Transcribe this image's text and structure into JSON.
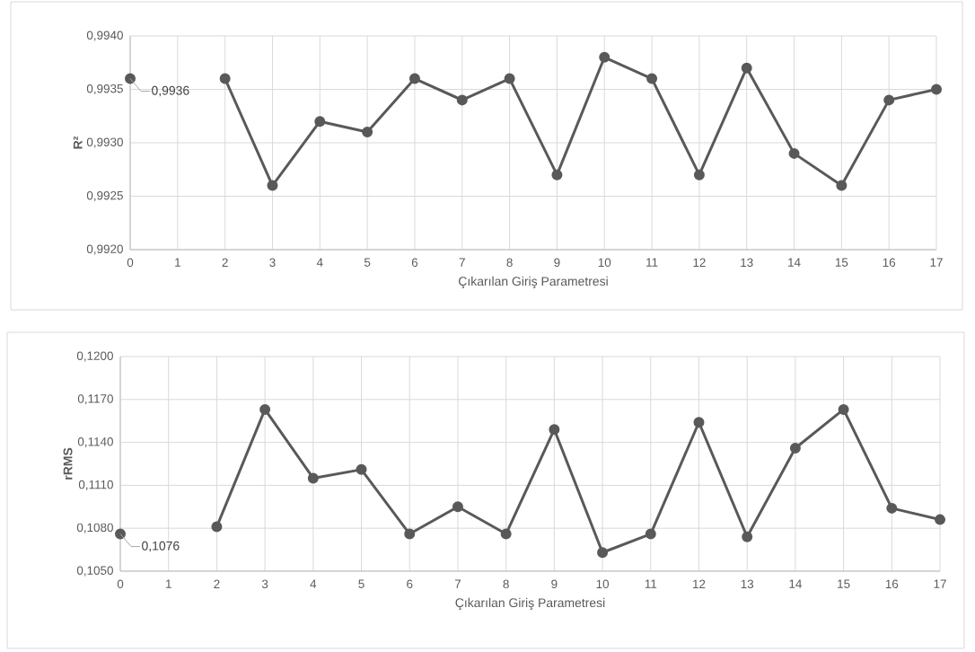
{
  "chart_data": [
    {
      "type": "line",
      "categories": [
        "0",
        "1",
        "2",
        "3",
        "4",
        "5",
        "6",
        "7",
        "8",
        "9",
        "10",
        "11",
        "12",
        "13",
        "14",
        "15",
        "16",
        "17"
      ],
      "values": [
        0.9936,
        null,
        0.9936,
        0.9926,
        0.9932,
        0.9931,
        0.9936,
        0.9934,
        0.9936,
        0.9927,
        0.9938,
        0.9936,
        0.9927,
        0.9937,
        0.9929,
        0.9926,
        0.9934,
        0.9935
      ],
      "color": "#595959",
      "marker": "circle",
      "grid": true,
      "ylim": [
        0.992,
        0.994
      ],
      "yticks": [
        {
          "value": 0.992,
          "label": "0,9920"
        },
        {
          "value": 0.9925,
          "label": "0,9925"
        },
        {
          "value": 0.993,
          "label": "0,9930"
        },
        {
          "value": 0.9935,
          "label": "0,9935"
        },
        {
          "value": 0.994,
          "label": "0,9940"
        }
      ],
      "xlabel": "Çıkarılan Giriş Parametresi",
      "ylabel": "R²",
      "annotations": [
        {
          "text": "0,9936",
          "x": "0",
          "y": 0.9936
        }
      ]
    },
    {
      "type": "line",
      "categories": [
        "0",
        "1",
        "2",
        "3",
        "4",
        "5",
        "6",
        "7",
        "8",
        "9",
        "10",
        "11",
        "12",
        "13",
        "14",
        "15",
        "16",
        "17"
      ],
      "values": [
        0.1076,
        null,
        0.1081,
        0.1163,
        0.1115,
        0.1121,
        0.1076,
        0.1095,
        0.1076,
        0.1149,
        0.1063,
        0.1076,
        0.1154,
        0.1074,
        0.1136,
        0.1163,
        0.1094,
        0.1086
      ],
      "color": "#595959",
      "marker": "circle",
      "grid": true,
      "ylim": [
        0.105,
        0.12
      ],
      "yticks": [
        {
          "value": 0.105,
          "label": "0,1050"
        },
        {
          "value": 0.108,
          "label": "0,1080"
        },
        {
          "value": 0.111,
          "label": "0,1110"
        },
        {
          "value": 0.114,
          "label": "0,1140"
        },
        {
          "value": 0.117,
          "label": "0,1170"
        },
        {
          "value": 0.12,
          "label": "0,1200"
        }
      ],
      "xlabel": "Çıkarılan Giriş Parametresi",
      "ylabel": "rRMS",
      "annotations": [
        {
          "text": "0,1076",
          "x": "0",
          "y": 0.1076
        }
      ]
    }
  ]
}
